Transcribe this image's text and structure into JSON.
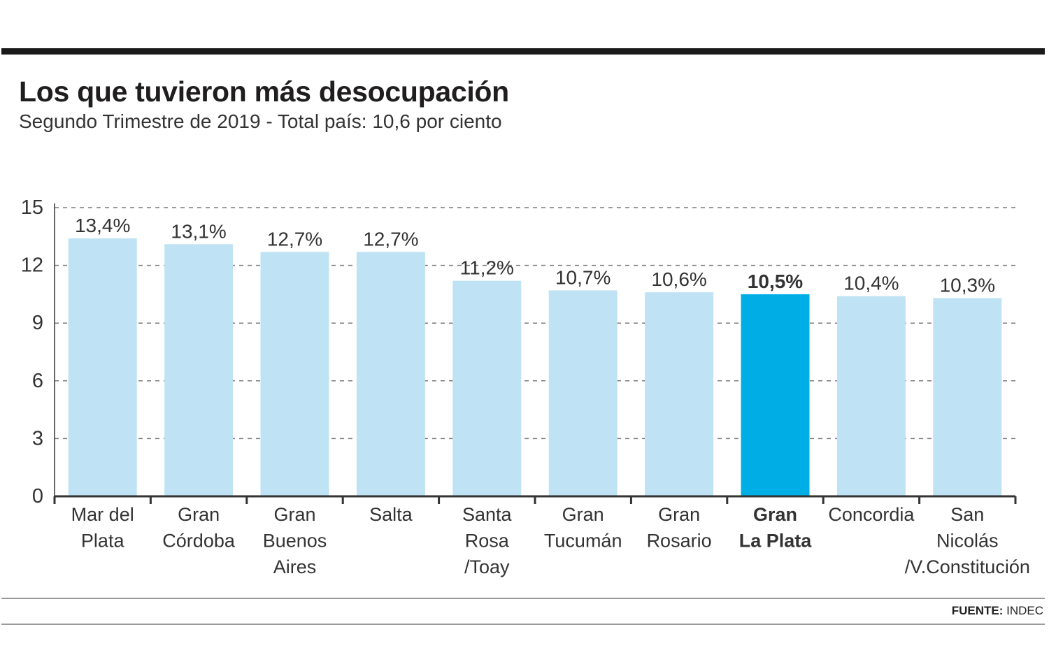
{
  "header": {
    "title": "Los que tuvieron más desocupación",
    "subtitle": "Segundo Trimestre de 2019 - Total país: 10,6 por ciento"
  },
  "footer": {
    "source_label": "FUENTE:",
    "source_value": "INDEC"
  },
  "colors": {
    "bar": "#bfe3f4",
    "highlight_bar": "#00aee6",
    "axis": "#333333",
    "grid": "#7a7a7a",
    "text": "#333333"
  },
  "chart_data": {
    "type": "bar",
    "title": "Los que tuvieron más desocupación",
    "subtitle": "Segundo Trimestre de 2019 - Total país: 10,6 por ciento",
    "xlabel": "",
    "ylabel": "",
    "ylim": [
      0,
      15
    ],
    "yticks": [
      0,
      3,
      6,
      9,
      12,
      15
    ],
    "grid": true,
    "categories": [
      [
        "Mar del",
        "Plata"
      ],
      [
        "Gran",
        "Córdoba"
      ],
      [
        "Gran",
        "Buenos",
        "Aires"
      ],
      [
        "Salta"
      ],
      [
        "Santa",
        "Rosa",
        "/Toay"
      ],
      [
        "Gran",
        "Tucumán"
      ],
      [
        "Gran",
        "Rosario"
      ],
      [
        "Gran",
        "La Plata"
      ],
      [
        "Concordia"
      ],
      [
        "San",
        "Nicolás",
        "/V.Constitución"
      ]
    ],
    "values": [
      13.4,
      13.1,
      12.7,
      12.7,
      11.2,
      10.7,
      10.6,
      10.5,
      10.4,
      10.3
    ],
    "value_labels": [
      "13,4%",
      "13,1%",
      "12,7%",
      "12,7%",
      "11,2%",
      "10,7%",
      "10,6%",
      "10,5%",
      "10,4%",
      "10,3%"
    ],
    "highlight_index": 7
  }
}
